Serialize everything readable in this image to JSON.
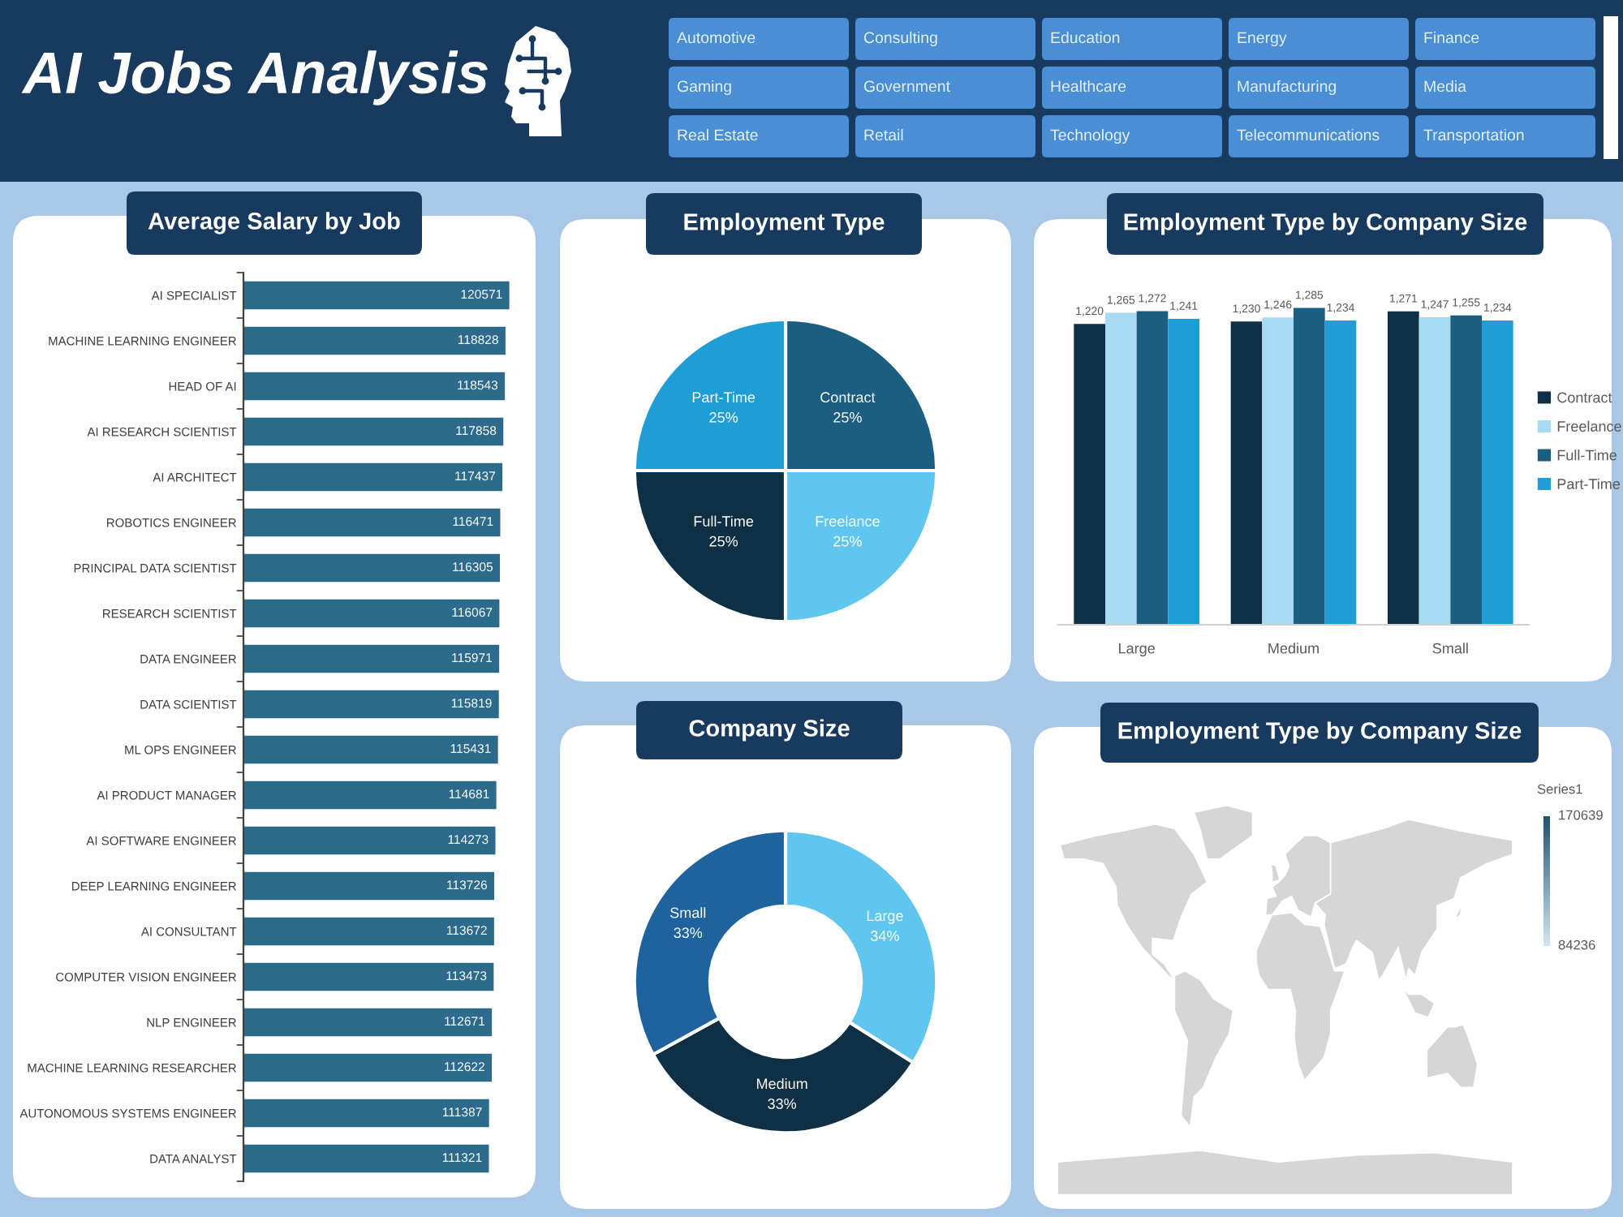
{
  "chart_data": [
    {
      "type": "other",
      "title": "AI Jobs Analysis",
      "categories": [
        "Automotive",
        "Consulting",
        "Education",
        "Energy",
        "Finance",
        "Gaming",
        "Government",
        "Healthcare",
        "Manufacturing",
        "Media",
        "Real Estate",
        "Retail",
        "Technology",
        "Telecommunications",
        "Transportation"
      ]
    },
    {
      "type": "bar",
      "title": "Average Salary by Job",
      "orientation": "horizontal",
      "categories": [
        "AI SPECIALIST",
        "MACHINE LEARNING ENGINEER",
        "HEAD OF AI",
        "AI RESEARCH SCIENTIST",
        "AI ARCHITECT",
        "ROBOTICS ENGINEER",
        "PRINCIPAL DATA SCIENTIST",
        "RESEARCH SCIENTIST",
        "DATA ENGINEER",
        "DATA SCIENTIST",
        "ML OPS ENGINEER",
        "AI PRODUCT MANAGER",
        "AI SOFTWARE ENGINEER",
        "DEEP LEARNING ENGINEER",
        "AI CONSULTANT",
        "COMPUTER VISION ENGINEER",
        "NLP ENGINEER",
        "MACHINE LEARNING RESEARCHER",
        "AUTONOMOUS SYSTEMS ENGINEER",
        "DATA ANALYST"
      ],
      "values": [
        120571,
        118828,
        118543,
        117858,
        117437,
        116471,
        116305,
        116067,
        115971,
        115819,
        115431,
        114681,
        114273,
        113726,
        113672,
        113473,
        112671,
        112622,
        111387,
        111321
      ],
      "color": "#2e6a8c",
      "tick_labels": "y",
      "data_labels": true
    },
    {
      "type": "pie",
      "title": "Employment Type",
      "categories": [
        "Contract",
        "Freelance",
        "Full-Time",
        "Part-Time"
      ],
      "values": [
        25,
        25,
        25,
        25
      ],
      "colors": [
        "#1b5e82",
        "#5ec6ef",
        "#0e2f44",
        "#1f9ed6"
      ],
      "value_labels": [
        "25%",
        "25%",
        "25%",
        "25%"
      ]
    },
    {
      "type": "bar",
      "title": "Employment Type by Company Size",
      "categories": [
        "Large",
        "Medium",
        "Small"
      ],
      "series": [
        {
          "name": "Contract",
          "color": "#0e2f44",
          "values": [
            1220,
            1230,
            1271
          ],
          "value_labels": [
            "1,220",
            "1,230",
            "1,271"
          ]
        },
        {
          "name": "Freelance",
          "color": "#a7dbf4",
          "values": [
            1265,
            1246,
            1247
          ],
          "value_labels": [
            "1,265",
            "1,246",
            "1,247"
          ]
        },
        {
          "name": "Full-Time",
          "color": "#1b5e82",
          "values": [
            1272,
            1285,
            1255
          ],
          "value_labels": [
            "1,272",
            "1,285",
            "1,255"
          ]
        },
        {
          "name": "Part-Time",
          "color": "#1f9ed6",
          "values": [
            1241,
            1234,
            1234
          ],
          "value_labels": [
            "1,241",
            "1,234",
            "1,234"
          ]
        }
      ],
      "tick_labels": "x",
      "legend": "right"
    },
    {
      "type": "donut",
      "title": "Company Size",
      "categories": [
        "Large",
        "Medium",
        "Small"
      ],
      "values": [
        34,
        33,
        33
      ],
      "colors": [
        "#5ec6ef",
        "#0e2f44",
        "#1f62a0"
      ],
      "value_labels": [
        "34%",
        "33%",
        "33%"
      ]
    },
    {
      "type": "other",
      "title": "Employment Type by Company Size",
      "legend_title": "Series1",
      "annotations": [
        "170639",
        "84236"
      ]
    }
  ]
}
